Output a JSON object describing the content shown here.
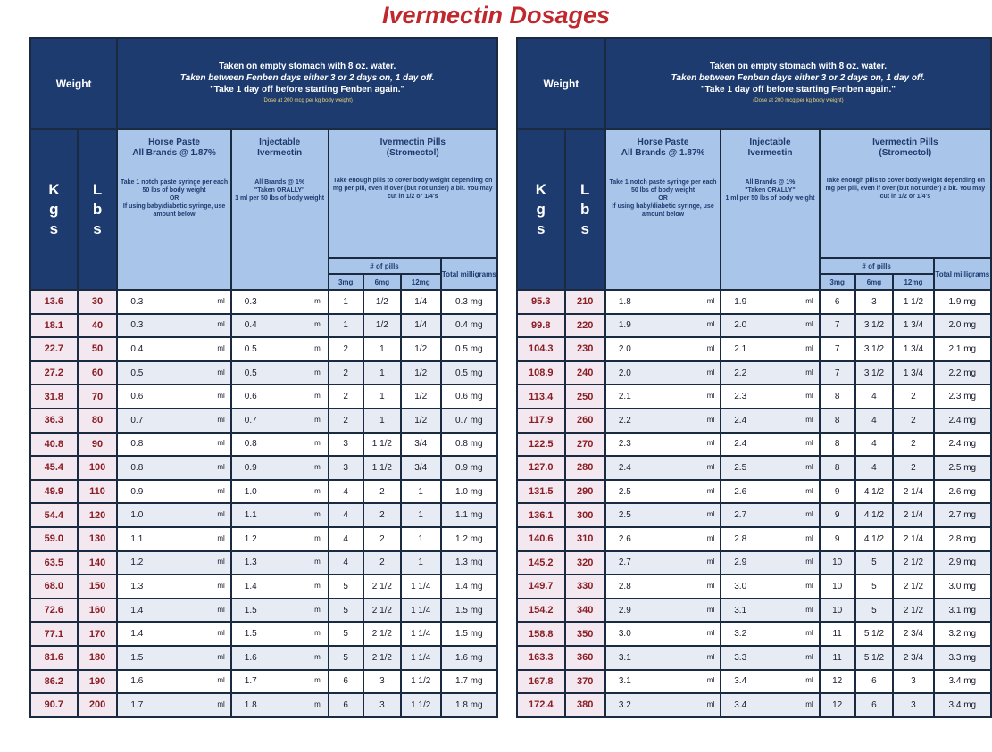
{
  "title": "Ivermectin Dosages",
  "header": {
    "weight": "Weight",
    "instructions": [
      "Taken on empty stomach with 8 oz. water.",
      "Taken between Fenben days either 3 or 2 days on, 1 day off.",
      "\"Take 1 day off before starting Fenben again.\""
    ],
    "dose_note": "(Dose at 200 mcg per kg body weight)",
    "kgs": "Kgs",
    "lbs": "Lbs",
    "horse_paste": {
      "title": [
        "Horse Paste",
        "All Brands @ 1.87%"
      ],
      "note": [
        "Take 1 notch paste syringe per each 50 lbs of body weight",
        "OR",
        "If using baby/diabetic syringe, use amount below"
      ]
    },
    "injectable": {
      "title": [
        "Injectable",
        "Ivermectin"
      ],
      "note": [
        "All Brands @ 1%",
        "\"Taken ORALLY\"",
        "1 ml per 50 lbs of body weight"
      ]
    },
    "pills": {
      "title": "Ivermectin Pills",
      "subtitle": "(Stromectol)",
      "note": "Take enough pills to cover body weight depending on mg per pill, even if over (but not under) a bit. You may cut in 1/2 or 1/4's",
      "count_label": "# of pills",
      "sizes": [
        "3mg",
        "6mg",
        "12mg"
      ],
      "total": "Total milligrams"
    }
  },
  "tables": [
    {
      "rows": [
        [
          "13.6",
          "30",
          "0.3",
          "ml",
          "0.3",
          "ml",
          "1",
          "1/2",
          "1/4",
          "0.3 mg"
        ],
        [
          "18.1",
          "40",
          "0.3",
          "ml",
          "0.4",
          "ml",
          "1",
          "1/2",
          "1/4",
          "0.4 mg"
        ],
        [
          "22.7",
          "50",
          "0.4",
          "ml",
          "0.5",
          "ml",
          "2",
          "1",
          "1/2",
          "0.5 mg"
        ],
        [
          "27.2",
          "60",
          "0.5",
          "ml",
          "0.5",
          "ml",
          "2",
          "1",
          "1/2",
          "0.5 mg"
        ],
        [
          "31.8",
          "70",
          "0.6",
          "ml",
          "0.6",
          "ml",
          "2",
          "1",
          "1/2",
          "0.6 mg"
        ],
        [
          "36.3",
          "80",
          "0.7",
          "ml",
          "0.7",
          "ml",
          "2",
          "1",
          "1/2",
          "0.7 mg"
        ],
        [
          "40.8",
          "90",
          "0.8",
          "ml",
          "0.8",
          "ml",
          "3",
          "1 1/2",
          "3/4",
          "0.8 mg"
        ],
        [
          "45.4",
          "100",
          "0.8",
          "ml",
          "0.9",
          "ml",
          "3",
          "1 1/2",
          "3/4",
          "0.9 mg"
        ],
        [
          "49.9",
          "110",
          "0.9",
          "ml",
          "1.0",
          "ml",
          "4",
          "2",
          "1",
          "1.0 mg"
        ],
        [
          "54.4",
          "120",
          "1.0",
          "ml",
          "1.1",
          "ml",
          "4",
          "2",
          "1",
          "1.1 mg"
        ],
        [
          "59.0",
          "130",
          "1.1",
          "ml",
          "1.2",
          "ml",
          "4",
          "2",
          "1",
          "1.2 mg"
        ],
        [
          "63.5",
          "140",
          "1.2",
          "ml",
          "1.3",
          "ml",
          "4",
          "2",
          "1",
          "1.3 mg"
        ],
        [
          "68.0",
          "150",
          "1.3",
          "ml",
          "1.4",
          "ml",
          "5",
          "2 1/2",
          "1 1/4",
          "1.4 mg"
        ],
        [
          "72.6",
          "160",
          "1.4",
          "ml",
          "1.5",
          "ml",
          "5",
          "2 1/2",
          "1 1/4",
          "1.5 mg"
        ],
        [
          "77.1",
          "170",
          "1.4",
          "ml",
          "1.5",
          "ml",
          "5",
          "2 1/2",
          "1 1/4",
          "1.5 mg"
        ],
        [
          "81.6",
          "180",
          "1.5",
          "ml",
          "1.6",
          "ml",
          "5",
          "2 1/2",
          "1 1/4",
          "1.6 mg"
        ],
        [
          "86.2",
          "190",
          "1.6",
          "ml",
          "1.7",
          "ml",
          "6",
          "3",
          "1 1/2",
          "1.7 mg"
        ],
        [
          "90.7",
          "200",
          "1.7",
          "ml",
          "1.8",
          "ml",
          "6",
          "3",
          "1 1/2",
          "1.8 mg"
        ]
      ]
    },
    {
      "rows": [
        [
          "95.3",
          "210",
          "1.8",
          "ml",
          "1.9",
          "ml",
          "6",
          "3",
          "1 1/2",
          "1.9 mg"
        ],
        [
          "99.8",
          "220",
          "1.9",
          "ml",
          "2.0",
          "ml",
          "7",
          "3 1/2",
          "1 3/4",
          "2.0 mg"
        ],
        [
          "104.3",
          "230",
          "2.0",
          "ml",
          "2.1",
          "ml",
          "7",
          "3 1/2",
          "1 3/4",
          "2.1 mg"
        ],
        [
          "108.9",
          "240",
          "2.0",
          "ml",
          "2.2",
          "ml",
          "7",
          "3 1/2",
          "1 3/4",
          "2.2 mg"
        ],
        [
          "113.4",
          "250",
          "2.1",
          "ml",
          "2.3",
          "ml",
          "8",
          "4",
          "2",
          "2.3 mg"
        ],
        [
          "117.9",
          "260",
          "2.2",
          "ml",
          "2.4",
          "ml",
          "8",
          "4",
          "2",
          "2.4 mg"
        ],
        [
          "122.5",
          "270",
          "2.3",
          "ml",
          "2.4",
          "ml",
          "8",
          "4",
          "2",
          "2.4 mg"
        ],
        [
          "127.0",
          "280",
          "2.4",
          "ml",
          "2.5",
          "ml",
          "8",
          "4",
          "2",
          "2.5 mg"
        ],
        [
          "131.5",
          "290",
          "2.5",
          "ml",
          "2.6",
          "ml",
          "9",
          "4 1/2",
          "2 1/4",
          "2.6 mg"
        ],
        [
          "136.1",
          "300",
          "2.5",
          "ml",
          "2.7",
          "ml",
          "9",
          "4 1/2",
          "2 1/4",
          "2.7 mg"
        ],
        [
          "140.6",
          "310",
          "2.6",
          "ml",
          "2.8",
          "ml",
          "9",
          "4 1/2",
          "2 1/4",
          "2.8 mg"
        ],
        [
          "145.2",
          "320",
          "2.7",
          "ml",
          "2.9",
          "ml",
          "10",
          "5",
          "2 1/2",
          "2.9 mg"
        ],
        [
          "149.7",
          "330",
          "2.8",
          "ml",
          "3.0",
          "ml",
          "10",
          "5",
          "2 1/2",
          "3.0 mg"
        ],
        [
          "154.2",
          "340",
          "2.9",
          "ml",
          "3.1",
          "ml",
          "10",
          "5",
          "2 1/2",
          "3.1 mg"
        ],
        [
          "158.8",
          "350",
          "3.0",
          "ml",
          "3.2",
          "ml",
          "11",
          "5 1/2",
          "2 3/4",
          "3.2 mg"
        ],
        [
          "163.3",
          "360",
          "3.1",
          "ml",
          "3.3",
          "ml",
          "11",
          "5 1/2",
          "2 3/4",
          "3.3 mg"
        ],
        [
          "167.8",
          "370",
          "3.1",
          "ml",
          "3.4",
          "ml",
          "12",
          "6",
          "3",
          "3.4 mg"
        ],
        [
          "172.4",
          "380",
          "3.2",
          "ml",
          "3.4",
          "ml",
          "12",
          "6",
          "3",
          "3.4 mg"
        ]
      ]
    }
  ]
}
